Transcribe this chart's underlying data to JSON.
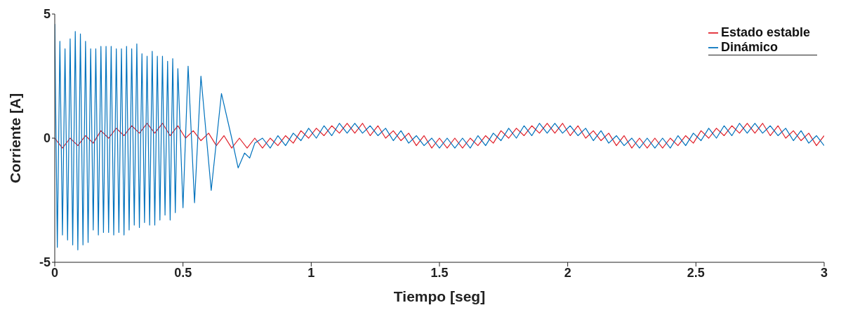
{
  "chart_data": {
    "type": "line",
    "xlabel": "Tiempo [seg]",
    "ylabel": "Corriente [A]",
    "xlim": [
      0,
      3
    ],
    "xticks": [
      0,
      0.5,
      1,
      1.5,
      2,
      2.5,
      3
    ],
    "ylim": [
      -5,
      5
    ],
    "yticks": [
      -5,
      0,
      5
    ],
    "grid": false,
    "legend": "top right",
    "line_style": "solid",
    "marker": "none",
    "series": [
      {
        "name": "Estado estable",
        "color": "#e0202a",
        "x": [
          0,
          0.03,
          0.06,
          0.09,
          0.12,
          0.15,
          0.18,
          0.21,
          0.24,
          0.27,
          0.3,
          0.33,
          0.36,
          0.39,
          0.42,
          0.45,
          0.48,
          0.51,
          0.54,
          0.57,
          0.6,
          0.63,
          0.66,
          0.69,
          0.72,
          0.75,
          0.78,
          0.81,
          0.84,
          0.87,
          0.9,
          0.93,
          0.96,
          0.99,
          1.02,
          1.05,
          1.08,
          1.11,
          1.14,
          1.17,
          1.2,
          1.23,
          1.26,
          1.29,
          1.32,
          1.35,
          1.38,
          1.41,
          1.44,
          1.47,
          1.5,
          1.53,
          1.56,
          1.59,
          1.62,
          1.65,
          1.68,
          1.71,
          1.74,
          1.77,
          1.8,
          1.83,
          1.86,
          1.89,
          1.92,
          1.95,
          1.98,
          2.01,
          2.04,
          2.07,
          2.1,
          2.13,
          2.16,
          2.19,
          2.22,
          2.25,
          2.28,
          2.31,
          2.34,
          2.37,
          2.4,
          2.43,
          2.46,
          2.49,
          2.52,
          2.55,
          2.58,
          2.61,
          2.64,
          2.67,
          2.7,
          2.73,
          2.76,
          2.79,
          2.82,
          2.85,
          2.88,
          2.91,
          2.94,
          2.97,
          3
        ],
        "values": [
          0,
          -0.4,
          0,
          -0.3,
          0.1,
          -0.2,
          0.3,
          0,
          0.4,
          0.1,
          0.5,
          0.2,
          0.6,
          0.2,
          0.6,
          0.1,
          0.5,
          0,
          0.3,
          -0.1,
          0.2,
          -0.3,
          0.1,
          -0.4,
          0,
          -0.4,
          0,
          -0.4,
          0,
          -0.3,
          0.1,
          -0.2,
          0.3,
          0,
          0.4,
          0.1,
          0.5,
          0.2,
          0.6,
          0.2,
          0.6,
          0.1,
          0.5,
          0,
          0.3,
          -0.1,
          0.2,
          -0.3,
          0.1,
          -0.4,
          0,
          -0.4,
          0,
          -0.4,
          0,
          -0.3,
          0.1,
          -0.2,
          0.3,
          0,
          0.4,
          0.1,
          0.5,
          0.2,
          0.6,
          0.2,
          0.6,
          0.1,
          0.5,
          0,
          0.3,
          -0.1,
          0.2,
          -0.3,
          0.1,
          -0.4,
          0,
          -0.4,
          0,
          -0.4,
          0,
          -0.3,
          0.1,
          -0.2,
          0.3,
          0,
          0.4,
          0.1,
          0.5,
          0.2,
          0.6,
          0.2,
          0.6,
          0.1,
          0.5,
          0,
          0.3,
          -0.1,
          0.2,
          -0.3,
          0.1
        ]
      },
      {
        "name": "Dinámico",
        "color": "#0072bd",
        "x": [
          0,
          0.01,
          0.02,
          0.03,
          0.04,
          0.05,
          0.06,
          0.07,
          0.08,
          0.09,
          0.1,
          0.11,
          0.12,
          0.13,
          0.14,
          0.15,
          0.16,
          0.17,
          0.18,
          0.19,
          0.2,
          0.21,
          0.22,
          0.23,
          0.24,
          0.25,
          0.26,
          0.27,
          0.28,
          0.29,
          0.3,
          0.31,
          0.32,
          0.33,
          0.34,
          0.35,
          0.36,
          0.37,
          0.38,
          0.39,
          0.4,
          0.41,
          0.42,
          0.43,
          0.44,
          0.45,
          0.46,
          0.47,
          0.48,
          0.5,
          0.52,
          0.545,
          0.57,
          0.61,
          0.65,
          0.69,
          0.715,
          0.74,
          0.76,
          0.78,
          0.81,
          0.84,
          0.87,
          0.9,
          0.93,
          0.96,
          0.99,
          1.02,
          1.05,
          1.08,
          1.11,
          1.14,
          1.17,
          1.2,
          1.23,
          1.26,
          1.29,
          1.32,
          1.35,
          1.38,
          1.41,
          1.44,
          1.47,
          1.5,
          1.53,
          1.56,
          1.59,
          1.62,
          1.65,
          1.68,
          1.71,
          1.74,
          1.77,
          1.8,
          1.83,
          1.86,
          1.89,
          1.92,
          1.95,
          1.98,
          2.01,
          2.04,
          2.07,
          2.1,
          2.13,
          2.16,
          2.19,
          2.22,
          2.25,
          2.28,
          2.31,
          2.34,
          2.37,
          2.4,
          2.43,
          2.46,
          2.49,
          2.52,
          2.55,
          2.58,
          2.61,
          2.64,
          2.67,
          2.7,
          2.73,
          2.76,
          2.79,
          2.82,
          2.85,
          2.88,
          2.91,
          2.94,
          2.97,
          3
        ],
        "values": [
          4.6,
          -4.4,
          3.9,
          -3.9,
          3.6,
          -4.1,
          4,
          -4.3,
          4.3,
          -4.5,
          4.2,
          -4.3,
          3.9,
          -4.2,
          3.6,
          -3.7,
          3.6,
          -3.9,
          3.7,
          -3.8,
          3.7,
          -3.8,
          3.7,
          -3.9,
          3.6,
          -3.8,
          3.6,
          -3.9,
          3.7,
          -3.7,
          3.6,
          -3.5,
          3.8,
          -3.6,
          3.4,
          -3.4,
          3.3,
          -3.5,
          3.5,
          -3.5,
          3.3,
          -3.3,
          3.3,
          -3.1,
          3.1,
          -3.3,
          3.2,
          -3,
          2.8,
          -2.8,
          2.9,
          -2.6,
          2.5,
          -2.1,
          1.8,
          0,
          -1.2,
          -0.6,
          -0.8,
          -0.2,
          0,
          -0.4,
          0.1,
          -0.3,
          0.2,
          -0.1,
          0.4,
          0,
          0.5,
          0.1,
          0.6,
          0.2,
          0.6,
          0.2,
          0.5,
          0.1,
          0.4,
          -0.1,
          0.3,
          -0.2,
          0.1,
          -0.3,
          0,
          -0.4,
          0,
          -0.4,
          0,
          -0.4,
          0.1,
          -0.3,
          0.2,
          -0.1,
          0.4,
          0,
          0.5,
          0.1,
          0.6,
          0.2,
          0.6,
          0.2,
          0.5,
          0.1,
          0.4,
          -0.1,
          0.3,
          -0.2,
          0.1,
          -0.3,
          0,
          -0.4,
          0,
          -0.4,
          0,
          -0.4,
          0.1,
          -0.3,
          0.2,
          -0.1,
          0.4,
          0,
          0.5,
          0.1,
          0.6,
          0.2,
          0.6,
          0.2,
          0.5,
          0.1,
          0.4,
          -0.1,
          0.3,
          -0.2,
          0.1,
          -0.3
        ]
      }
    ]
  }
}
